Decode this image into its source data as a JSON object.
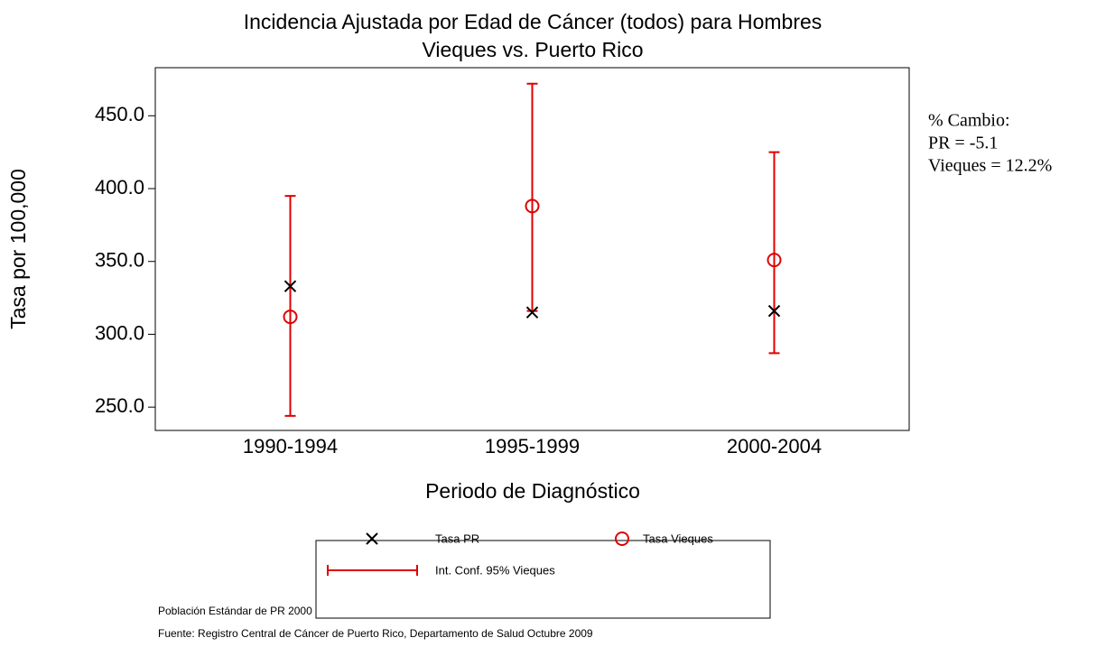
{
  "chart_data": {
    "type": "dot",
    "title": [
      "Incidencia Ajustada por Edad de Cáncer (todos) para Hombres",
      "Vieques vs. Puerto Rico"
    ],
    "x_label": "Periodo de Diagnóstico",
    "y_label": "Tasa por 100,000",
    "categories": [
      "1990-1994",
      "1995-1999",
      "2000-2004"
    ],
    "series": [
      {
        "name": "Tasa PR",
        "color": "#000000",
        "marker": "x",
        "values": [
          333,
          315,
          316
        ]
      },
      {
        "name": "Tasa Vieques",
        "color": "#e00000",
        "marker": "o",
        "values": [
          312,
          388,
          351
        ]
      }
    ],
    "error_bars": {
      "name": "Int. Conf. 95% Vieques",
      "color": "#e00000",
      "low": [
        244,
        316,
        287
      ],
      "high": [
        395,
        472,
        425
      ]
    },
    "ylim": [
      234,
      483
    ],
    "yticks": [
      {
        "value": 250,
        "label": "250.0"
      },
      {
        "value": 300,
        "label": "300.0"
      },
      {
        "value": 350,
        "label": "350.0"
      },
      {
        "value": 400,
        "label": "400.0"
      },
      {
        "value": 450,
        "label": "450.0"
      }
    ],
    "annotations": [
      "% Cambio:",
      "PR = -5.1",
      "Vieques = 12.2%"
    ],
    "footnotes": [
      "Población Estándar de PR 2000",
      "Fuente: Registro Central de Cáncer de Puerto Rico, Departamento de Salud Octubre 2009"
    ]
  }
}
